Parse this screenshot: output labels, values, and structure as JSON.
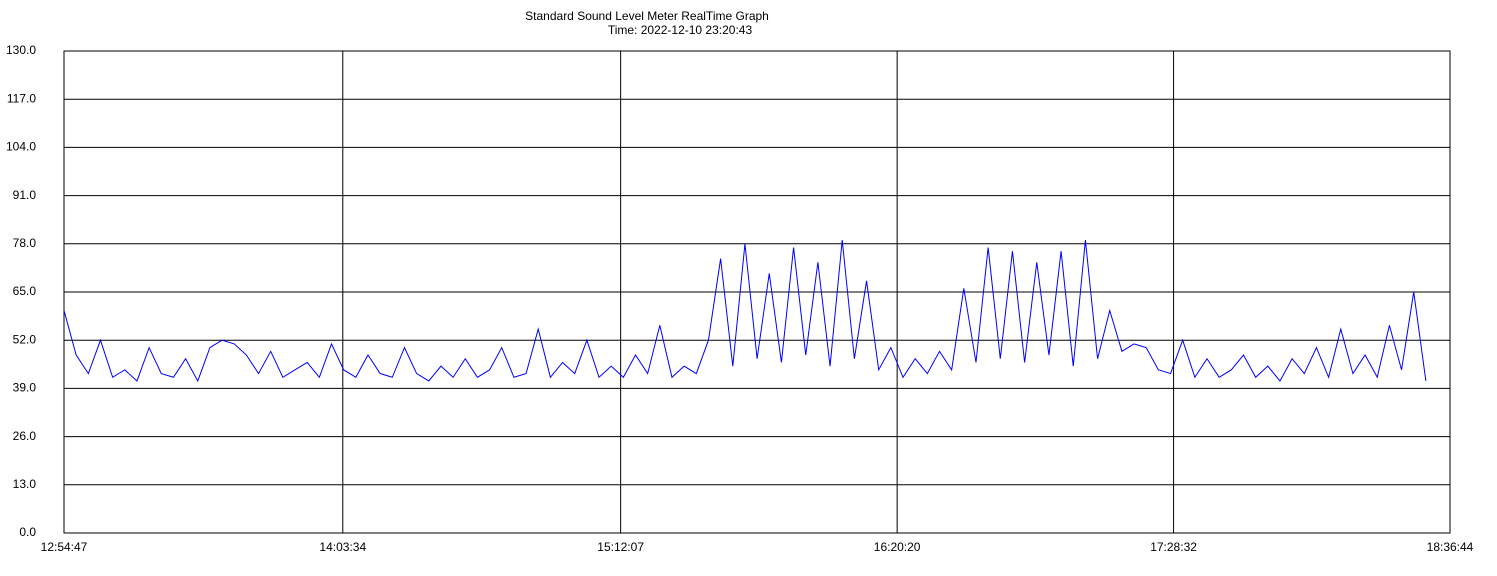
{
  "chart_data": {
    "type": "line",
    "title": "Standard Sound Level Meter RealTime Graph",
    "subtitle": "Time: 2022-12-10  23:20:43",
    "color": "#0000ff",
    "grid": true,
    "xlim": [
      "12:54:47",
      "18:36:44"
    ],
    "xticks": [
      "12:54:47",
      "14:03:34",
      "15:12:07",
      "16:20:20",
      "17:28:32",
      "18:36:44"
    ],
    "ylim": [
      0,
      130
    ],
    "yticks": [
      {
        "value": 0,
        "label": "0.0"
      },
      {
        "value": 13,
        "label": "13.0"
      },
      {
        "value": 26,
        "label": "26.0"
      },
      {
        "value": 39,
        "label": "39.0"
      },
      {
        "value": 52,
        "label": "52.0"
      },
      {
        "value": 65,
        "label": "65.0"
      },
      {
        "value": 78,
        "label": "78.0"
      },
      {
        "value": 91,
        "label": "91.0"
      },
      {
        "value": 104,
        "label": "104.0"
      },
      {
        "value": 117,
        "label": "117.0"
      },
      {
        "value": 130,
        "label": "130.0"
      }
    ],
    "x": [
      "12:54:47",
      "12:57:47",
      "13:00:47",
      "13:03:47",
      "13:06:47",
      "13:09:47",
      "13:12:47",
      "13:15:47",
      "13:18:47",
      "13:21:47",
      "13:24:47",
      "13:27:47",
      "13:30:47",
      "13:33:47",
      "13:36:47",
      "13:39:47",
      "13:42:47",
      "13:45:47",
      "13:48:47",
      "13:51:47",
      "13:54:47",
      "13:57:47",
      "14:00:47",
      "14:03:47",
      "14:06:47",
      "14:09:47",
      "14:12:47",
      "14:15:47",
      "14:18:47",
      "14:21:47",
      "14:24:47",
      "14:27:47",
      "14:30:47",
      "14:33:47",
      "14:36:47",
      "14:39:47",
      "14:42:47",
      "14:45:47",
      "14:48:47",
      "14:51:47",
      "14:54:47",
      "14:57:47",
      "15:00:47",
      "15:03:47",
      "15:06:47",
      "15:09:47",
      "15:12:47",
      "15:15:47",
      "15:18:47",
      "15:21:47",
      "15:24:47",
      "15:27:47",
      "15:30:47",
      "15:33:47",
      "15:36:47",
      "15:39:47",
      "15:42:47",
      "15:45:47",
      "15:48:47",
      "15:51:47",
      "15:54:47",
      "15:57:47",
      "16:00:47",
      "16:03:47",
      "16:06:47",
      "16:09:47",
      "16:12:47",
      "16:15:47",
      "16:18:47",
      "16:21:47",
      "16:24:47",
      "16:27:47",
      "16:30:47",
      "16:33:47",
      "16:36:47",
      "16:39:47",
      "16:42:47",
      "16:45:47",
      "16:48:47",
      "16:51:47",
      "16:54:47",
      "16:57:47",
      "17:00:47",
      "17:03:47",
      "17:06:47",
      "17:09:47",
      "17:12:47",
      "17:15:47",
      "17:18:47",
      "17:21:47",
      "17:24:47",
      "17:27:47",
      "17:30:47",
      "17:33:47",
      "17:36:47",
      "17:39:47",
      "17:42:47",
      "17:45:47",
      "17:48:47",
      "17:51:47",
      "17:54:47",
      "17:57:47",
      "18:00:47",
      "18:03:47",
      "18:06:47",
      "18:09:47",
      "18:12:47",
      "18:15:47",
      "18:18:47",
      "18:21:47",
      "18:24:47",
      "18:27:47",
      "18:30:47"
    ],
    "values": [
      60,
      48,
      43,
      52,
      42,
      44,
      41,
      50,
      43,
      42,
      47,
      41,
      50,
      52,
      51,
      48,
      43,
      49,
      42,
      44,
      46,
      42,
      51,
      44,
      42,
      48,
      43,
      42,
      50,
      43,
      41,
      45,
      42,
      47,
      42,
      44,
      50,
      42,
      43,
      55,
      42,
      46,
      43,
      52,
      42,
      45,
      42,
      48,
      43,
      56,
      42,
      45,
      43,
      52,
      74,
      45,
      78,
      47,
      70,
      46,
      77,
      48,
      73,
      45,
      79,
      47,
      68,
      44,
      50,
      42,
      47,
      43,
      49,
      44,
      66,
      46,
      77,
      47,
      76,
      46,
      73,
      48,
      76,
      45,
      79,
      47,
      60,
      49,
      51,
      50,
      44,
      43,
      52,
      42,
      47,
      42,
      44,
      48,
      42,
      45,
      41,
      47,
      43,
      50,
      42,
      55,
      43,
      48,
      42,
      56,
      44,
      65,
      41
    ]
  }
}
